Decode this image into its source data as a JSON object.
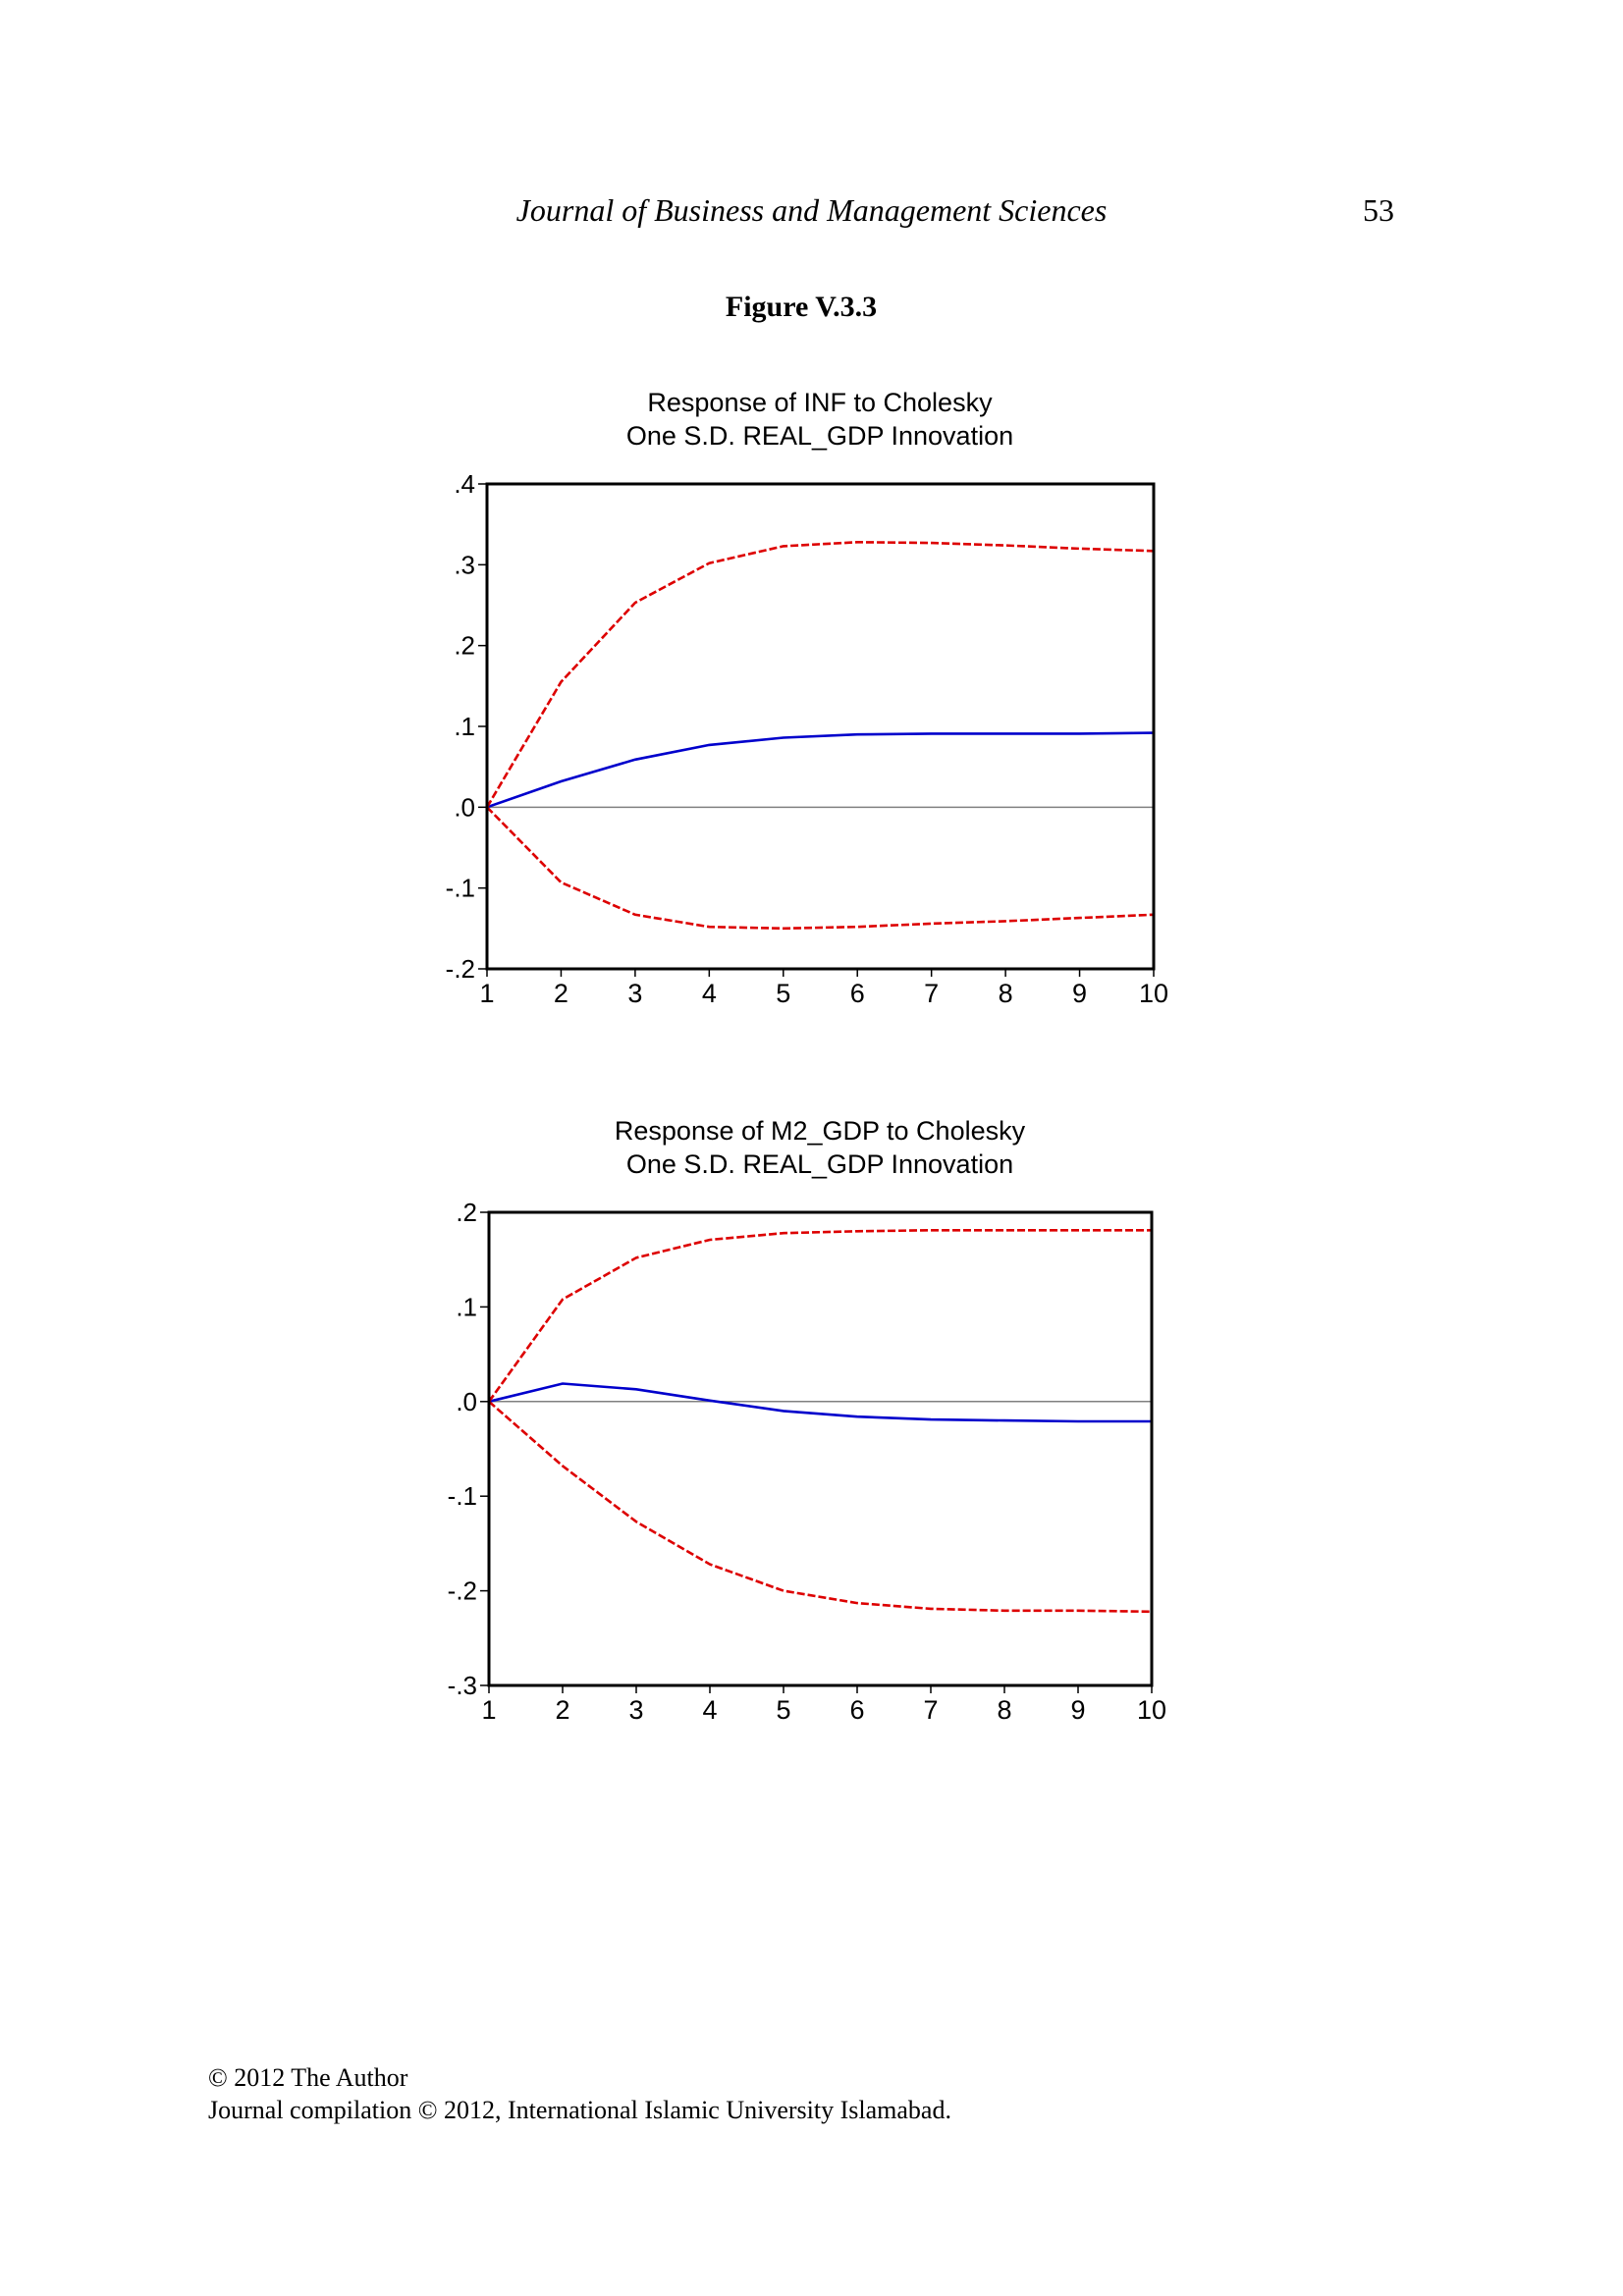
{
  "header": {
    "journal_title": "Journal of Business and Management Sciences",
    "page_number": "53"
  },
  "figure_label": "Figure V.3.3",
  "footer": {
    "line1": "© 2012 The Author",
    "line2": "Journal compilation © 2012, International Islamic University Islamabad."
  },
  "colors": {
    "response": "#0000cc",
    "band": "#dd0000",
    "zero_line": "#808080"
  },
  "chart_data": [
    {
      "type": "line",
      "title": "Response of INF to Cholesky",
      "subtitle": "One S.D. REAL_GDP Innovation",
      "x": [
        1,
        2,
        3,
        4,
        5,
        6,
        7,
        8,
        9,
        10
      ],
      "x_tick_labels": [
        "1",
        "2",
        "3",
        "4",
        "5",
        "6",
        "7",
        "8",
        "9",
        "10"
      ],
      "ylim": [
        -0.2,
        0.4
      ],
      "y_ticks": [
        0.4,
        0.3,
        0.2,
        0.1,
        0.0,
        -0.1,
        -0.2
      ],
      "y_tick_labels": [
        ".4",
        ".3",
        ".2",
        ".1",
        ".0",
        "-.1",
        "-.2"
      ],
      "zero_line": true,
      "grid": false,
      "series": [
        {
          "role": "response",
          "style": "solid",
          "values": [
            0.0,
            0.032,
            0.059,
            0.077,
            0.086,
            0.09,
            0.091,
            0.091,
            0.091,
            0.092
          ]
        },
        {
          "role": "upper",
          "style": "dashed",
          "values": [
            0.0,
            0.155,
            0.253,
            0.302,
            0.323,
            0.328,
            0.327,
            0.324,
            0.32,
            0.317
          ]
        },
        {
          "role": "lower",
          "style": "dashed",
          "values": [
            0.0,
            -0.093,
            -0.133,
            -0.148,
            -0.15,
            -0.148,
            -0.144,
            -0.141,
            -0.137,
            -0.133
          ]
        }
      ]
    },
    {
      "type": "line",
      "title": "Response of M2_GDP to Cholesky",
      "subtitle": "One S.D. REAL_GDP Innovation",
      "x": [
        1,
        2,
        3,
        4,
        5,
        6,
        7,
        8,
        9,
        10
      ],
      "x_tick_labels": [
        "1",
        "2",
        "3",
        "4",
        "5",
        "6",
        "7",
        "8",
        "9",
        "10"
      ],
      "ylim": [
        -0.3,
        0.2
      ],
      "y_ticks": [
        0.2,
        0.1,
        0.0,
        -0.1,
        -0.2,
        -0.3
      ],
      "y_tick_labels": [
        ".2",
        ".1",
        ".0",
        "-.1",
        "-.2",
        "-.3"
      ],
      "zero_line": true,
      "grid": false,
      "series": [
        {
          "role": "response",
          "style": "solid",
          "values": [
            0.0,
            0.019,
            0.013,
            0.001,
            -0.01,
            -0.016,
            -0.019,
            -0.02,
            -0.021,
            -0.021
          ]
        },
        {
          "role": "upper",
          "style": "dashed",
          "values": [
            0.0,
            0.108,
            0.152,
            0.171,
            0.178,
            0.18,
            0.181,
            0.181,
            0.181,
            0.181
          ]
        },
        {
          "role": "lower",
          "style": "dashed",
          "values": [
            0.0,
            -0.068,
            -0.127,
            -0.172,
            -0.2,
            -0.213,
            -0.219,
            -0.221,
            -0.221,
            -0.222
          ]
        }
      ]
    }
  ]
}
